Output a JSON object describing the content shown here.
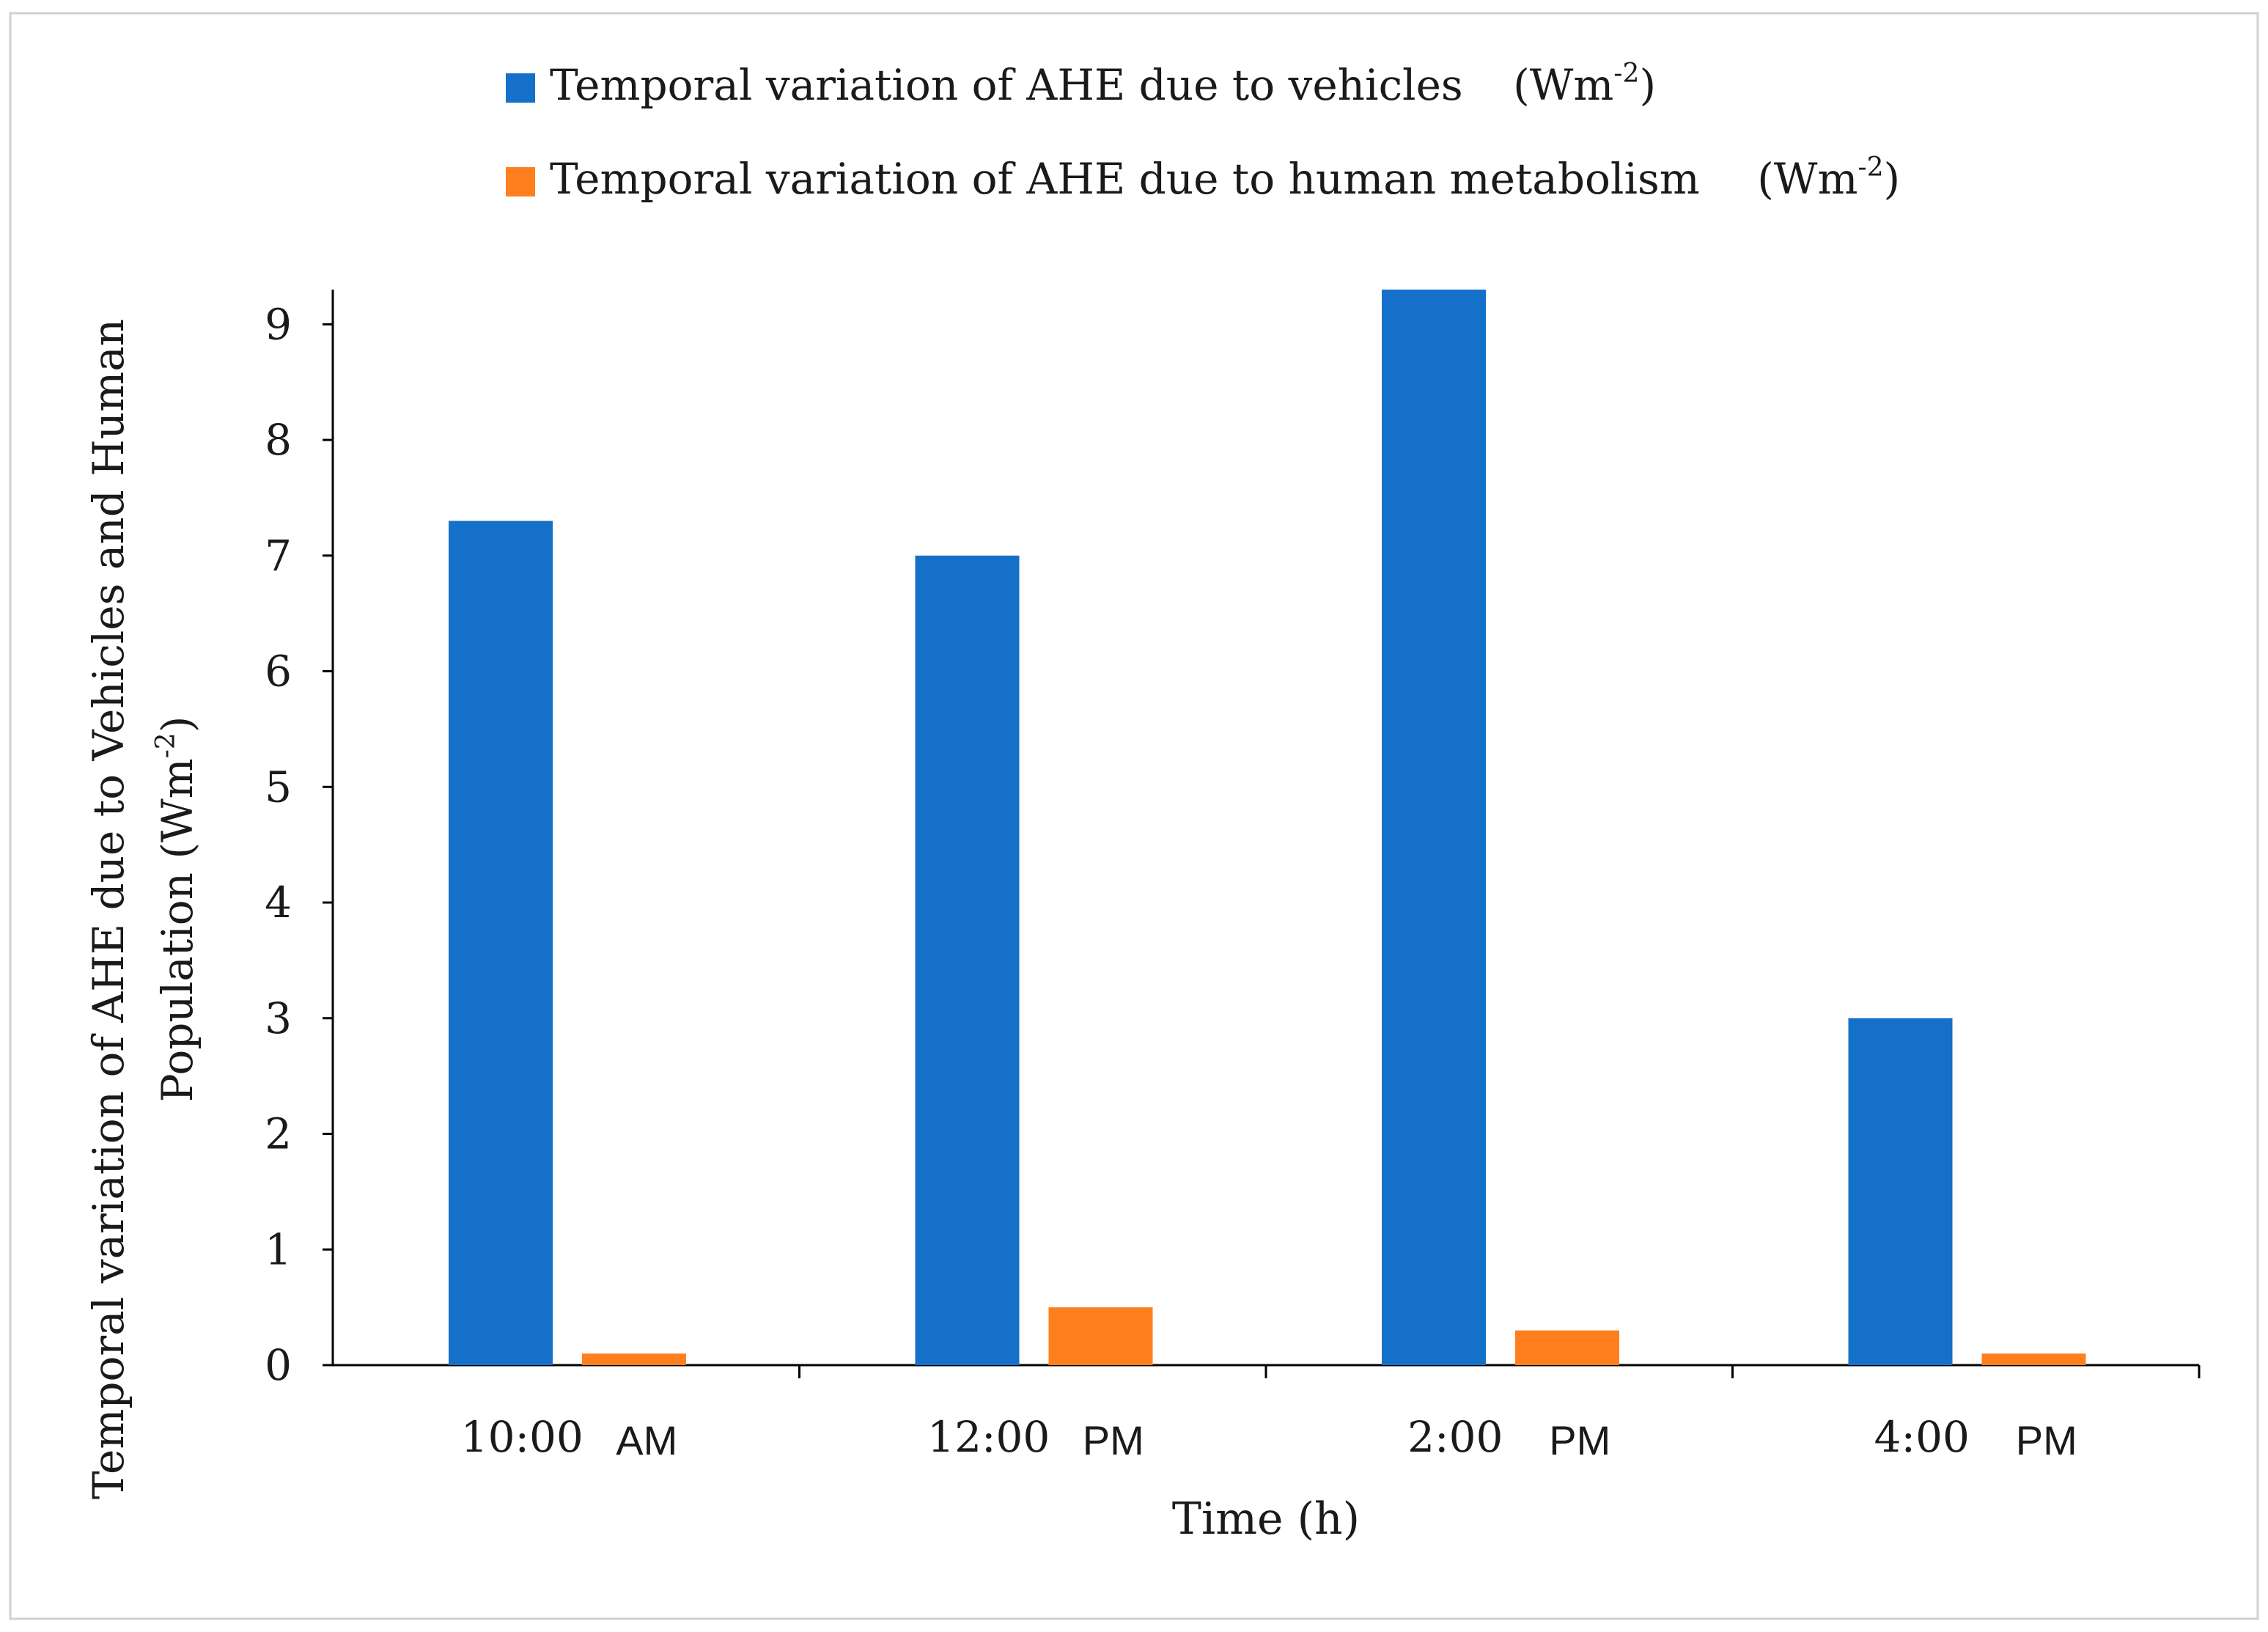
{
  "chart_data": {
    "type": "bar",
    "categories": [
      "10:00",
      "12:00",
      "2:00",
      "4:00"
    ],
    "category_suffixes": [
      "AM",
      "PM",
      "PM",
      "PM"
    ],
    "series": [
      {
        "name": "Temporal variation of AHE due to vehicles",
        "unit_prefix": "(Wm",
        "unit_sup": "-2",
        "unit_suffix": ")",
        "color": "#1570C9",
        "values": [
          7.3,
          7.0,
          9.3,
          3.0
        ]
      },
      {
        "name": "Temporal variation of AHE due to human metabolism",
        "unit_prefix": "(Wm",
        "unit_sup": "-2",
        "unit_suffix": ")",
        "color": "#FF7F1E",
        "values": [
          0.1,
          0.5,
          0.3,
          0.1
        ]
      }
    ],
    "yticks": [
      "0",
      "1",
      "2",
      "3",
      "4",
      "5",
      "6",
      "7",
      "8",
      "9"
    ],
    "ylim": [
      0,
      9.3
    ],
    "xlabel": "Time (h)",
    "ylabel_line1": "Temporal variation of AHE due to Vehicles and Human",
    "ylabel_line2_prefix": "Population (Wm",
    "ylabel_line2_sup": "-2",
    "ylabel_line2_suffix": ")",
    "legend_position": "top",
    "grid": false
  }
}
